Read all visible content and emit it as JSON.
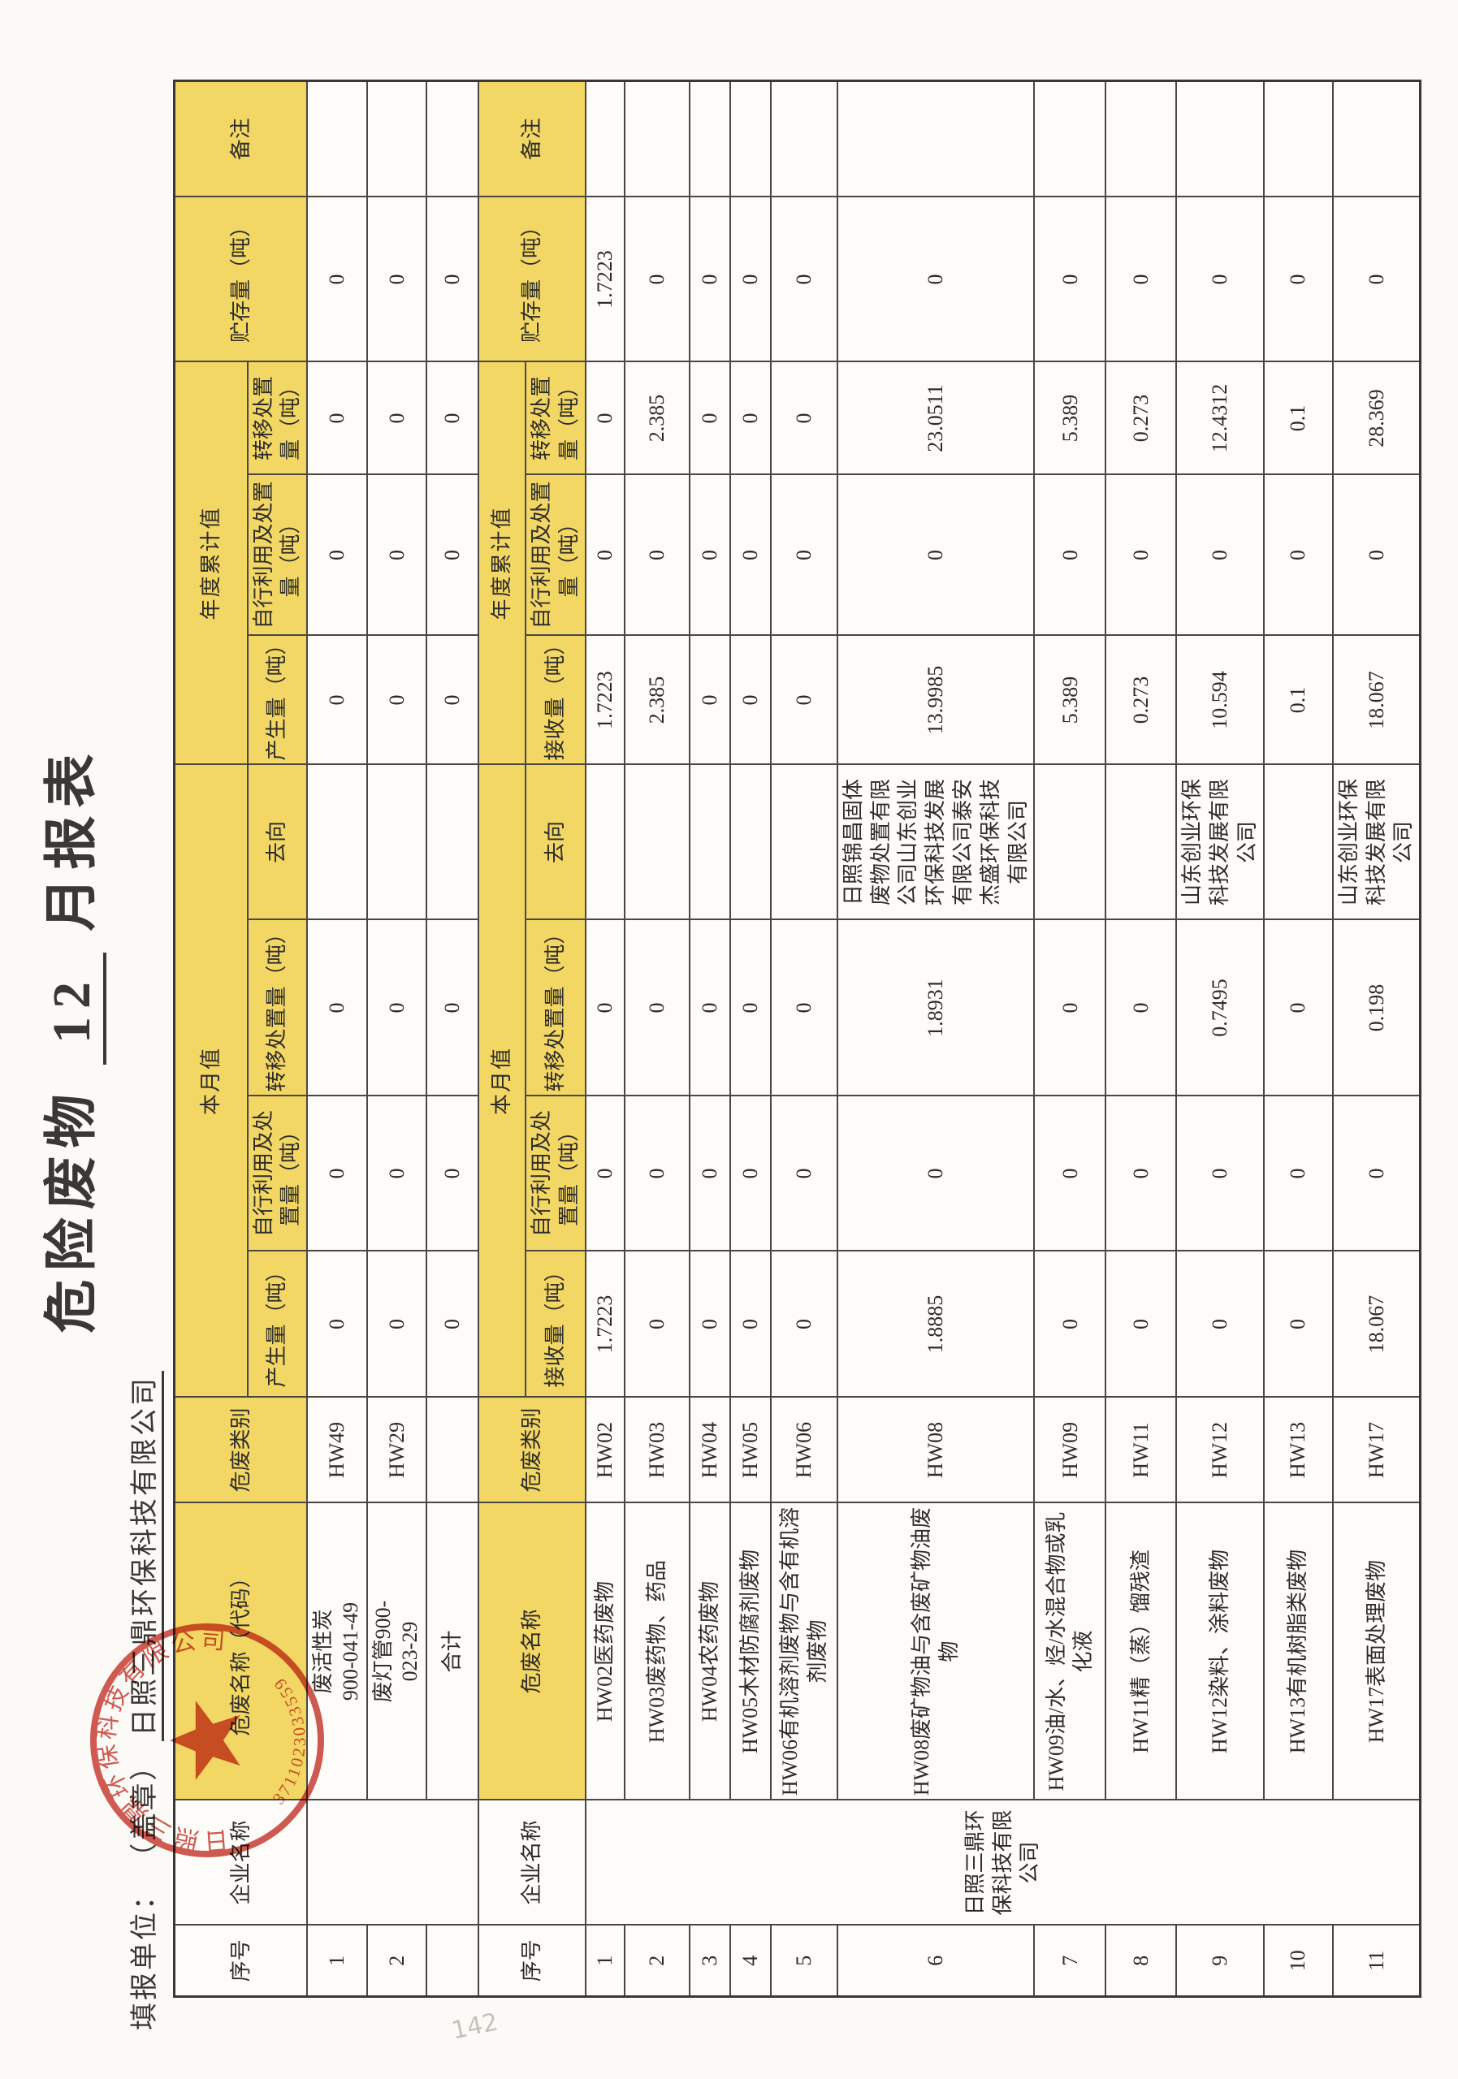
{
  "page": {
    "title_prefix": "危险废物",
    "title_month": "12",
    "title_suffix": "月报表",
    "form_label": "填报单位：",
    "form_seal": "（盖章）",
    "form_company": "日照三鼎环保科技有限公司"
  },
  "stamp": {
    "company": "日照三鼎环保科技有限公司",
    "serial": "3711023033559",
    "color": "#c5372c"
  },
  "headers": {
    "seq": "序号",
    "company": "企业名称",
    "waste_name_code": "危废名称（代码）",
    "waste_name": "危废名称",
    "category": "危废类别",
    "month_group": "本月值",
    "year_group": "年度累计值",
    "produced": "产生量（吨）",
    "received": "接收量（吨）",
    "self_disposed": "自行利用及处置量（吨）",
    "transferred": "转移处置量（吨）",
    "destination": "去向",
    "storage": "贮存量（吨）",
    "note": "备注"
  },
  "section_a": {
    "company": "",
    "rows": [
      {
        "seq": "1",
        "name": "废活性炭\n900-041-49",
        "category": "HW49",
        "m_in": "0",
        "m_self": "0",
        "m_tr": "0",
        "dest": "",
        "y_in": "0",
        "y_self": "0",
        "y_tr": "0",
        "storage": "0",
        "note": ""
      },
      {
        "seq": "2",
        "name": "废灯管900-\n023-29",
        "category": "HW29",
        "m_in": "0",
        "m_self": "0",
        "m_tr": "0",
        "dest": "",
        "y_in": "0",
        "y_self": "0",
        "y_tr": "0",
        "storage": "0",
        "note": ""
      },
      {
        "seq": "",
        "name": "合计",
        "category": "",
        "m_in": "0",
        "m_self": "0",
        "m_tr": "0",
        "dest": "",
        "y_in": "0",
        "y_self": "0",
        "y_tr": "0",
        "storage": "0",
        "note": ""
      }
    ]
  },
  "section_b": {
    "company": "日照三鼎环保科技有限公司",
    "rows": [
      {
        "seq": "1",
        "name": "HW02医药废物",
        "category": "HW02",
        "m_in": "1.7223",
        "m_self": "0",
        "m_tr": "0",
        "dest": "",
        "y_in": "1.7223",
        "y_self": "0",
        "y_tr": "0",
        "storage": "1.7223",
        "note": ""
      },
      {
        "seq": "2",
        "name": "HW03废药物、药品",
        "category": "HW03",
        "m_in": "0",
        "m_self": "0",
        "m_tr": "0",
        "dest": "",
        "y_in": "2.385",
        "y_self": "0",
        "y_tr": "2.385",
        "storage": "0",
        "note": ""
      },
      {
        "seq": "3",
        "name": "HW04农药废物",
        "category": "HW04",
        "m_in": "0",
        "m_self": "0",
        "m_tr": "0",
        "dest": "",
        "y_in": "0",
        "y_self": "0",
        "y_tr": "0",
        "storage": "0",
        "note": ""
      },
      {
        "seq": "4",
        "name": "HW05木材防腐剂废物",
        "category": "HW05",
        "m_in": "0",
        "m_self": "0",
        "m_tr": "0",
        "dest": "",
        "y_in": "0",
        "y_self": "0",
        "y_tr": "0",
        "storage": "0",
        "note": ""
      },
      {
        "seq": "5",
        "name": "HW06有机溶剂废物与含有机溶剂废物",
        "category": "HW06",
        "m_in": "0",
        "m_self": "0",
        "m_tr": "0",
        "dest": "",
        "y_in": "0",
        "y_self": "0",
        "y_tr": "0",
        "storage": "0",
        "note": ""
      },
      {
        "seq": "6",
        "name": "HW08废矿物油与含废矿物油废物",
        "category": "HW08",
        "m_in": "1.8885",
        "m_self": "0",
        "m_tr": "1.8931",
        "dest": "日照锦昌固体废物处置有限公司山东创业环保科技发展有限公司泰安杰盛环保科技有限公司",
        "y_in": "13.9985",
        "y_self": "0",
        "y_tr": "23.0511",
        "storage": "0",
        "note": ""
      },
      {
        "seq": "7",
        "name": "HW09油/水、烃/水混合物或乳化液",
        "category": "HW09",
        "m_in": "0",
        "m_self": "0",
        "m_tr": "0",
        "dest": "",
        "y_in": "5.389",
        "y_self": "0",
        "y_tr": "5.389",
        "storage": "0",
        "note": ""
      },
      {
        "seq": "8",
        "name": "HW11精（蒸）馏残渣",
        "category": "HW11",
        "m_in": "0",
        "m_self": "0",
        "m_tr": "0",
        "dest": "",
        "y_in": "0.273",
        "y_self": "0",
        "y_tr": "0.273",
        "storage": "0",
        "note": ""
      },
      {
        "seq": "9",
        "name": "HW12染料、涂料废物",
        "category": "HW12",
        "m_in": "0",
        "m_self": "0",
        "m_tr": "0.7495",
        "dest": "山东创业环保科技发展有限公司",
        "y_in": "10.594",
        "y_self": "0",
        "y_tr": "12.4312",
        "storage": "0",
        "note": ""
      },
      {
        "seq": "10",
        "name": "HW13有机树脂类废物",
        "category": "HW13",
        "m_in": "0",
        "m_self": "0",
        "m_tr": "0",
        "dest": "",
        "y_in": "0.1",
        "y_self": "0",
        "y_tr": "0.1",
        "storage": "0",
        "note": ""
      },
      {
        "seq": "11",
        "name": "HW17表面处理废物",
        "category": "HW17",
        "m_in": "18.067",
        "m_self": "0",
        "m_tr": "0.198",
        "dest": "山东创业环保科技发展有限公司",
        "y_in": "18.067",
        "y_self": "0",
        "y_tr": "28.369",
        "storage": "0",
        "note": ""
      }
    ]
  },
  "margin_note": "142"
}
